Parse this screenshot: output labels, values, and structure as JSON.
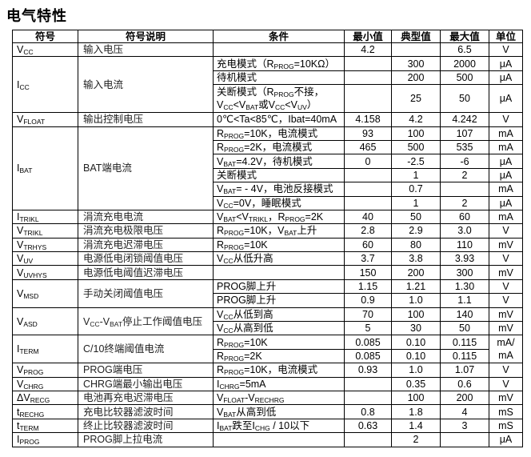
{
  "title": "电气特性",
  "headers": [
    "符号",
    "符号说明",
    "条件",
    "最小值",
    "典型值",
    "最大值",
    "单位"
  ],
  "groups": [
    {
      "symbol": [
        [
          "V",
          0
        ],
        [
          "CC",
          1
        ]
      ],
      "desc": [
        [
          "输入电压",
          0
        ]
      ],
      "rows": [
        {
          "cond": [],
          "min": "4.2",
          "typ": "",
          "max": "6.5",
          "unit": "V"
        }
      ]
    },
    {
      "symbol": [
        [
          "I",
          0
        ],
        [
          "CC",
          1
        ]
      ],
      "desc": [
        [
          "输入电流",
          0
        ]
      ],
      "rows": [
        {
          "cond": [
            [
              "充电模式（R",
              0
            ],
            [
              "PROG",
              1
            ],
            [
              "=10KΩ）",
              0
            ]
          ],
          "min": "",
          "typ": "300",
          "max": "2000",
          "unit": "μA"
        },
        {
          "cond": [
            [
              "待机模式",
              0
            ]
          ],
          "min": "",
          "typ": "200",
          "max": "500",
          "unit": "μA"
        },
        {
          "tall": true,
          "cond": [
            [
              "关断模式（R",
              0
            ],
            [
              "PROG",
              1
            ],
            [
              "不接，",
              0
            ],
            [
              "\n",
              0
            ],
            [
              "V",
              0
            ],
            [
              "CC",
              1
            ],
            [
              "<V",
              0
            ],
            [
              "BAT",
              1
            ],
            [
              "或V",
              0
            ],
            [
              "CC",
              1
            ],
            [
              "<V",
              0
            ],
            [
              "UV",
              1
            ],
            [
              "）",
              0
            ]
          ],
          "min": "",
          "typ": "25",
          "max": "50",
          "unit": "μA"
        }
      ]
    },
    {
      "symbol": [
        [
          "V",
          0
        ],
        [
          "FLOAT",
          1
        ]
      ],
      "desc": [
        [
          "输出控制电压",
          0
        ]
      ],
      "rows": [
        {
          "cond": [
            [
              "0℃<Ta<85℃，Ibat=40mA",
              0
            ]
          ],
          "min": "4.158",
          "typ": "4.2",
          "max": "4.242",
          "unit": "V"
        }
      ]
    },
    {
      "symbol": [
        [
          "I",
          0
        ],
        [
          "BAT",
          1
        ]
      ],
      "desc": [
        [
          "BAT端电流",
          0
        ]
      ],
      "rows": [
        {
          "cond": [
            [
              "R",
              0
            ],
            [
              "PROG",
              1
            ],
            [
              "=10K，电流模式",
              0
            ]
          ],
          "min": "93",
          "typ": "100",
          "max": "107",
          "unit": "mA"
        },
        {
          "cond": [
            [
              "R",
              0
            ],
            [
              "PROG",
              1
            ],
            [
              "=2K，电流模式",
              0
            ]
          ],
          "min": "465",
          "typ": "500",
          "max": "535",
          "unit": "mA"
        },
        {
          "cond": [
            [
              "V",
              0
            ],
            [
              "BAT",
              1
            ],
            [
              "=4.2V，待机模式",
              0
            ]
          ],
          "min": "0",
          "typ": "-2.5",
          "max": "-6",
          "unit": "μA"
        },
        {
          "cond": [
            [
              "关断模式",
              0
            ]
          ],
          "min": "",
          "typ": "1",
          "max": "2",
          "unit": "μA"
        },
        {
          "cond": [
            [
              "V",
              0
            ],
            [
              "BAT",
              1
            ],
            [
              "= - 4V，电池反接模式",
              0
            ]
          ],
          "min": "",
          "typ": "0.7",
          "max": "",
          "unit": "mA"
        },
        {
          "cond": [
            [
              "V",
              0
            ],
            [
              "CC",
              1
            ],
            [
              "=0V，睡眠模式",
              0
            ]
          ],
          "min": "",
          "typ": "1",
          "max": "2",
          "unit": "μA"
        }
      ]
    },
    {
      "symbol": [
        [
          "I",
          0
        ],
        [
          "TRIKL",
          1
        ]
      ],
      "desc": [
        [
          "涓流充电电流",
          0
        ]
      ],
      "rows": [
        {
          "cond": [
            [
              "V",
              0
            ],
            [
              "BAT",
              1
            ],
            [
              "<V",
              0
            ],
            [
              "TRIKL",
              1
            ],
            [
              "，R",
              0
            ],
            [
              "PROG",
              1
            ],
            [
              "=2K",
              0
            ]
          ],
          "min": "40",
          "typ": "50",
          "max": "60",
          "unit": "mA"
        }
      ]
    },
    {
      "symbol": [
        [
          "V",
          0
        ],
        [
          "TRIKL",
          1
        ]
      ],
      "desc": [
        [
          "涓流充电极限电压",
          0
        ]
      ],
      "rows": [
        {
          "cond": [
            [
              "R",
              0
            ],
            [
              "PROG",
              1
            ],
            [
              "=10K，V",
              0
            ],
            [
              "BAT",
              1
            ],
            [
              "上升",
              0
            ]
          ],
          "min": "2.8",
          "typ": "2.9",
          "max": "3.0",
          "unit": "V"
        }
      ]
    },
    {
      "symbol": [
        [
          "V",
          0
        ],
        [
          "TRHYS",
          1
        ]
      ],
      "desc": [
        [
          "涓流充电迟滞电压",
          0
        ]
      ],
      "rows": [
        {
          "cond": [
            [
              "R",
              0
            ],
            [
              "PROG",
              1
            ],
            [
              "=10K",
              0
            ]
          ],
          "min": "60",
          "typ": "80",
          "max": "110",
          "unit": "mV"
        }
      ]
    },
    {
      "symbol": [
        [
          "V",
          0
        ],
        [
          "UV",
          1
        ]
      ],
      "desc": [
        [
          "电源低电闭锁阈值电压",
          0
        ]
      ],
      "rows": [
        {
          "cond": [
            [
              "V",
              0
            ],
            [
              "CC",
              1
            ],
            [
              "从低升高",
              0
            ]
          ],
          "min": "3.7",
          "typ": "3.8",
          "max": "3.93",
          "unit": "V"
        }
      ]
    },
    {
      "symbol": [
        [
          "V",
          0
        ],
        [
          "UVHYS",
          1
        ]
      ],
      "desc": [
        [
          "电源低电阈值迟滞电压",
          0
        ]
      ],
      "rows": [
        {
          "cond": [],
          "min": "150",
          "typ": "200",
          "max": "300",
          "unit": "mV"
        }
      ]
    },
    {
      "symbol": [
        [
          "V",
          0
        ],
        [
          "MSD",
          1
        ]
      ],
      "desc": [
        [
          "手动关闭阈值电压",
          0
        ]
      ],
      "rows": [
        {
          "cond": [
            [
              "PROG脚上升",
              0
            ]
          ],
          "min": "1.15",
          "typ": "1.21",
          "max": "1.30",
          "unit": "V"
        },
        {
          "cond": [
            [
              "PROG脚上升",
              0
            ]
          ],
          "min": "0.9",
          "typ": "1.0",
          "max": "1.1",
          "unit": "V"
        }
      ]
    },
    {
      "symbol": [
        [
          "V",
          0
        ],
        [
          "ASD",
          1
        ]
      ],
      "desc": [
        [
          "V",
          0
        ],
        [
          "CC",
          1
        ],
        [
          "-V",
          0
        ],
        [
          "BAT",
          1
        ],
        [
          "停止工作阈值电压",
          0
        ]
      ],
      "rows": [
        {
          "cond": [
            [
              "V",
              0
            ],
            [
              "CC",
              1
            ],
            [
              "从低到高",
              0
            ]
          ],
          "min": "70",
          "typ": "100",
          "max": "140",
          "unit": "mV"
        },
        {
          "cond": [
            [
              "V",
              0
            ],
            [
              "CC",
              1
            ],
            [
              "从高到低",
              0
            ]
          ],
          "min": "5",
          "typ": "30",
          "max": "50",
          "unit": "mV"
        }
      ]
    },
    {
      "symbol": [
        [
          "I",
          0
        ],
        [
          "TERM",
          1
        ]
      ],
      "desc": [
        [
          "C/10终端阈值电流",
          0
        ]
      ],
      "unit_span": "mA/ mA",
      "rows": [
        {
          "cond": [
            [
              "R",
              0
            ],
            [
              "PROG",
              1
            ],
            [
              "=10K",
              0
            ]
          ],
          "min": "0.085",
          "typ": "0.10",
          "max": "0.115"
        },
        {
          "cond": [
            [
              "R",
              0
            ],
            [
              "PROG",
              1
            ],
            [
              "=2K",
              0
            ]
          ],
          "min": "0.085",
          "typ": "0.10",
          "max": "0.115"
        }
      ]
    },
    {
      "symbol": [
        [
          "V",
          0
        ],
        [
          "PROG",
          1
        ]
      ],
      "desc": [
        [
          "PROG端电压",
          0
        ]
      ],
      "rows": [
        {
          "cond": [
            [
              "R",
              0
            ],
            [
              "PROG",
              1
            ],
            [
              "=10K，电流模式",
              0
            ]
          ],
          "min": "0.93",
          "typ": "1.0",
          "max": "1.07",
          "unit": "V"
        }
      ]
    },
    {
      "symbol": [
        [
          "V",
          0
        ],
        [
          "CHRG",
          1
        ]
      ],
      "desc": [
        [
          "CHRG端最小输出电压",
          0
        ]
      ],
      "rows": [
        {
          "cond": [
            [
              "I",
              0
            ],
            [
              "CHRG",
              1
            ],
            [
              "=5mA",
              0
            ]
          ],
          "min": "",
          "typ": "0.35",
          "max": "0.6",
          "unit": "V"
        }
      ]
    },
    {
      "symbol": [
        [
          "ΔV",
          0
        ],
        [
          "RECG",
          1
        ]
      ],
      "desc": [
        [
          "电池再充电迟滞电压",
          0
        ]
      ],
      "rows": [
        {
          "cond": [
            [
              "V",
              0
            ],
            [
              "FLOAT",
              1
            ],
            [
              "-V",
              0
            ],
            [
              "RECHRG",
              1
            ]
          ],
          "min": "",
          "typ": "100",
          "max": "200",
          "unit": "mV"
        }
      ]
    },
    {
      "symbol": [
        [
          "t",
          0
        ],
        [
          "RECHG",
          1
        ]
      ],
      "desc": [
        [
          "充电比较器滤波时间",
          0
        ]
      ],
      "rows": [
        {
          "cond": [
            [
              "V",
              0
            ],
            [
              "BAT",
              1
            ],
            [
              "从高到低",
              0
            ]
          ],
          "min": "0.8",
          "typ": "1.8",
          "max": "4",
          "unit": "mS"
        }
      ]
    },
    {
      "symbol": [
        [
          "t",
          0
        ],
        [
          "TERM",
          1
        ]
      ],
      "desc": [
        [
          "终止比较器滤波时间",
          0
        ]
      ],
      "rows": [
        {
          "cond": [
            [
              "I",
              0
            ],
            [
              "BAT",
              1
            ],
            [
              "跌至I",
              0
            ],
            [
              "CHG",
              1
            ],
            [
              " / 10以下",
              0
            ]
          ],
          "min": "0.63",
          "typ": "1.4",
          "max": "3",
          "unit": "mS"
        }
      ]
    },
    {
      "symbol": [
        [
          "I",
          0
        ],
        [
          "PROG",
          1
        ]
      ],
      "desc": [
        [
          "PROG脚上拉电流",
          0
        ]
      ],
      "rows": [
        {
          "cond": [],
          "min": "",
          "typ": "2",
          "max": "",
          "unit": "μA"
        }
      ]
    }
  ]
}
